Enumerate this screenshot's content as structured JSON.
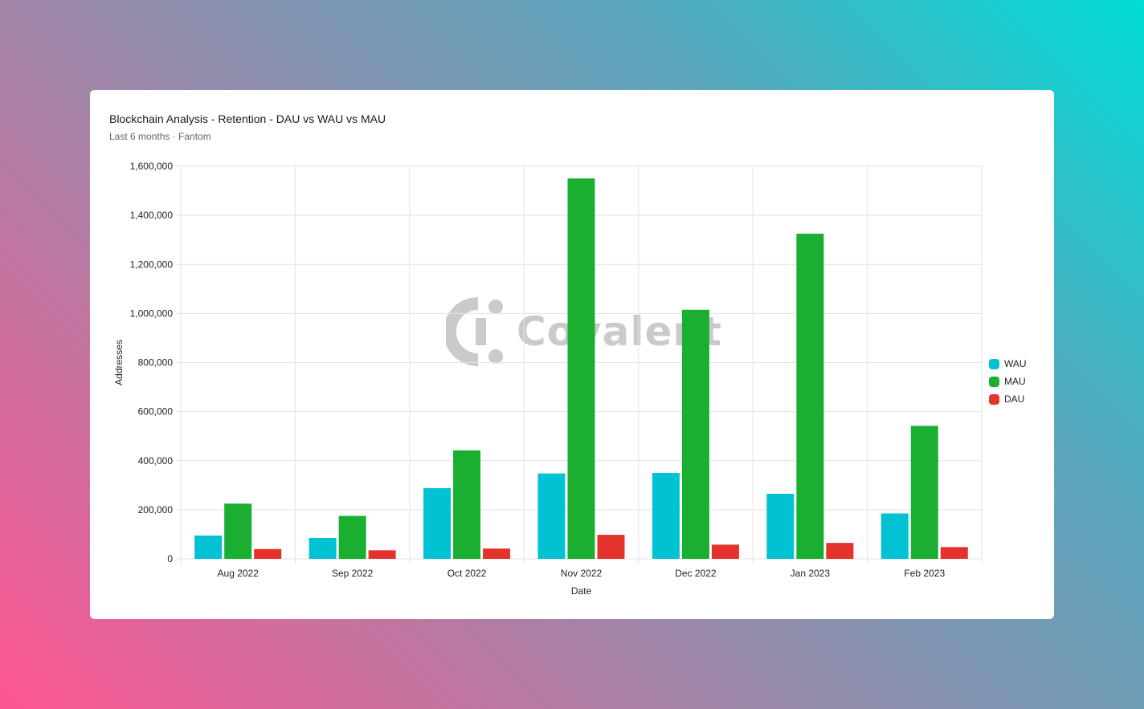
{
  "card": {
    "title": "Blockchain Analysis - Retention - DAU vs WAU vs MAU",
    "subtitle": "Last 6 months · Fantom",
    "watermark": "Covalent"
  },
  "chart_data": {
    "type": "bar",
    "xlabel": "Date",
    "ylabel": "Addresses",
    "ylim": [
      0,
      1600000
    ],
    "yticks": [
      0,
      200000,
      400000,
      600000,
      800000,
      1000000,
      1200000,
      1400000,
      1600000
    ],
    "grid": true,
    "legend_position": "right",
    "categories": [
      "Aug 2022",
      "Sep 2022",
      "Oct 2022",
      "Nov 2022",
      "Dec 2022",
      "Jan 2023",
      "Feb 2023"
    ],
    "series": [
      {
        "name": "WAU",
        "color": "#00c2d3",
        "values": [
          95000,
          85000,
          288000,
          348000,
          350000,
          265000,
          185000
        ]
      },
      {
        "name": "MAU",
        "color": "#1aaf31",
        "values": [
          225000,
          175000,
          442000,
          1550000,
          1015000,
          1325000,
          542000
        ]
      },
      {
        "name": "DAU",
        "color": "#e4332c",
        "values": [
          40000,
          35000,
          42000,
          98000,
          58000,
          65000,
          48000
        ]
      }
    ]
  }
}
